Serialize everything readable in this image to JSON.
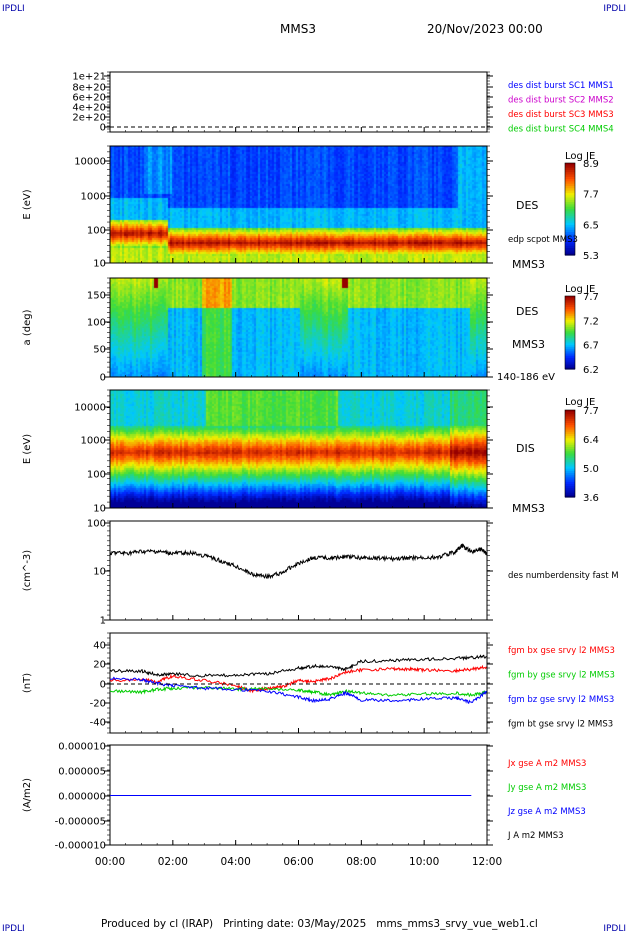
{
  "header": {
    "corner_tl": "IPDLI",
    "corner_tr": "IPDLI",
    "corner_bl": "IPDLI",
    "corner_br": "IPDLI",
    "spacecraft": "MMS3",
    "date": "20/Nov/2023 00:00"
  },
  "footer": {
    "text": "Produced by cl (IRAP)   Printing date: 03/May/2025   mms_mms3_srvy_vue_web1.cl"
  },
  "chart_data": [
    {
      "panel": 1,
      "type": "line",
      "ylabel": "",
      "yticks": [
        "1e+21",
        "8e+20",
        "6e+20",
        "4e+20",
        "2e+20",
        "0"
      ],
      "ylim": [
        0,
        1e+21
      ],
      "legend": [
        {
          "name": "des dist burst SC1 MMS1",
          "color": "#0000ff"
        },
        {
          "name": "des dist burst SC2 MMS2",
          "color": "#cc00cc"
        },
        {
          "name": "des dist burst SC3 MMS3",
          "color": "#ff0000"
        },
        {
          "name": "des dist burst SC4 MMS4",
          "color": "#00cc00"
        }
      ]
    },
    {
      "panel": 2,
      "type": "heatmap",
      "ylabel": "E (eV)",
      "yscale": "log",
      "yticks": [
        "10000",
        "1000",
        "100",
        "10"
      ],
      "ylim": [
        10,
        20000
      ],
      "right_labels": [
        "DES",
        "edp scpot MMS3",
        "MMS3"
      ],
      "colorbar": {
        "title": "Log JE",
        "ticks": [
          "8.9",
          "7.7",
          "6.5",
          "5.3"
        ],
        "range": [
          5.3,
          8.9
        ]
      }
    },
    {
      "panel": 3,
      "type": "heatmap",
      "ylabel": "a (deg)",
      "yticks": [
        "150",
        "100",
        "50",
        "0"
      ],
      "ylim": [
        0,
        180
      ],
      "right_labels": [
        "DES",
        "MMS3",
        "140-186 eV"
      ],
      "colorbar": {
        "title": "Log JE",
        "ticks": [
          "7.7",
          "7.2",
          "6.7",
          "6.2"
        ],
        "range": [
          6.2,
          7.7
        ]
      }
    },
    {
      "panel": 4,
      "type": "heatmap",
      "ylabel": "E (eV)",
      "yscale": "log",
      "yticks": [
        "10000",
        "1000",
        "100",
        "10"
      ],
      "ylim": [
        10,
        30000
      ],
      "right_labels": [
        "DIS",
        "MMS3"
      ],
      "colorbar": {
        "title": "Log JE",
        "ticks": [
          "7.7",
          "6.4",
          "5.0",
          "3.6"
        ],
        "range": [
          3.6,
          7.7
        ]
      }
    },
    {
      "panel": 5,
      "type": "line",
      "ylabel": "(cm^-3)",
      "yscale": "log",
      "yticks": [
        "100",
        "10",
        "1"
      ],
      "ylim": [
        1,
        100
      ],
      "legend": [
        {
          "name": "des numberdensity fast M",
          "color": "#000000"
        }
      ],
      "series": [
        {
          "name": "des numberdensity fast M",
          "color": "#000000",
          "x": [
            0,
            0.5,
            1,
            1.5,
            2,
            2.5,
            3,
            3.5,
            4,
            4.5,
            5,
            5.5,
            6,
            6.5,
            7,
            7.5,
            8,
            8.5,
            9,
            9.5,
            10,
            10.5,
            11,
            11.2,
            11.5,
            11.8,
            12
          ],
          "y": [
            23,
            22,
            24,
            24,
            22,
            23,
            20,
            16,
            12,
            8.5,
            7.5,
            9,
            14,
            18,
            18,
            19,
            18,
            18,
            17,
            18,
            18,
            19,
            24,
            32,
            24,
            27,
            22
          ]
        }
      ]
    },
    {
      "panel": 6,
      "type": "line",
      "ylabel": "(nT)",
      "yticks": [
        "40",
        "20",
        "0",
        "-20",
        "-40"
      ],
      "ylim": [
        -50,
        50
      ],
      "legend": [
        {
          "name": "fgm bx gse srvy l2 MMS3",
          "color": "#ff0000"
        },
        {
          "name": "fgm by gse srvy l2 MMS3",
          "color": "#00cc00"
        },
        {
          "name": "fgm bz gse srvy l2 MMS3",
          "color": "#0000ff"
        },
        {
          "name": "fgm bt gse srvy l2 MMS3",
          "color": "#000000"
        }
      ],
      "series": [
        {
          "name": "fgm bx gse srvy l2 MMS3",
          "color": "#ff0000",
          "x": [
            0,
            1,
            1.5,
            2,
            3,
            4,
            4.5,
            5,
            5.5,
            6,
            6.5,
            7,
            7.5,
            8,
            9,
            9.5,
            10,
            11,
            11.5,
            12
          ],
          "y": [
            3,
            4,
            2,
            8,
            3,
            -2,
            -8,
            -5,
            -3,
            3,
            2,
            5,
            12,
            14,
            15,
            15,
            14,
            13,
            15,
            17
          ]
        },
        {
          "name": "fgm by gse srvy l2 MMS3",
          "color": "#00cc00",
          "x": [
            0,
            1,
            1.5,
            2,
            3,
            4,
            5,
            6,
            6.5,
            7,
            7.5,
            8,
            9,
            10,
            11,
            11.5,
            12
          ],
          "y": [
            -8,
            -9,
            -6,
            -5,
            -4,
            -6,
            -5,
            -7,
            -9,
            -12,
            -8,
            -10,
            -12,
            -11,
            -10,
            -12,
            -9
          ]
        },
        {
          "name": "fgm bz gse srvy l2 MMS3",
          "color": "#0000ff",
          "x": [
            0,
            1,
            1.5,
            2,
            3,
            4,
            5,
            6,
            6.5,
            7,
            7.5,
            8,
            9,
            10,
            11,
            11.5,
            12
          ],
          "y": [
            5,
            4,
            0,
            -2,
            -5,
            -6,
            -8,
            -14,
            -18,
            -16,
            -10,
            -17,
            -18,
            -16,
            -15,
            -20,
            -8
          ]
        },
        {
          "name": "fgm bt gse srvy l2 MMS3",
          "color": "#000000",
          "x": [
            0,
            1,
            1.5,
            2,
            3,
            4,
            5,
            6,
            6.5,
            7,
            7.5,
            8,
            9,
            10,
            11,
            11.5,
            12
          ],
          "y": [
            13,
            13,
            9,
            10,
            8,
            9,
            10,
            16,
            18,
            17,
            15,
            23,
            24,
            25,
            26,
            27,
            28
          ]
        }
      ]
    },
    {
      "panel": 7,
      "type": "line",
      "ylabel": "(A/m2)",
      "yticks": [
        "0.000010",
        "0.000005",
        "0.000000",
        "-0.000005",
        "-0.000010"
      ],
      "ylim": [
        -1e-05,
        1e-05
      ],
      "legend": [
        {
          "name": "Jx gse A m2 MMS3",
          "color": "#ff0000"
        },
        {
          "name": "Jy gse A m2 MMS3",
          "color": "#00cc00"
        },
        {
          "name": "Jz gse A m2 MMS3",
          "color": "#0000ff"
        },
        {
          "name": "J A m2 MMS3",
          "color": "#000000"
        }
      ],
      "series": [
        {
          "name": "Jz gse A m2 MMS3",
          "color": "#0000ff",
          "x": [
            0,
            12
          ],
          "y": [
            0,
            0
          ]
        }
      ]
    }
  ],
  "xaxis": {
    "ticks": [
      "00:00",
      "02:00",
      "04:00",
      "06:00",
      "08:00",
      "10:00",
      "12:00"
    ],
    "range": [
      0,
      12
    ]
  }
}
